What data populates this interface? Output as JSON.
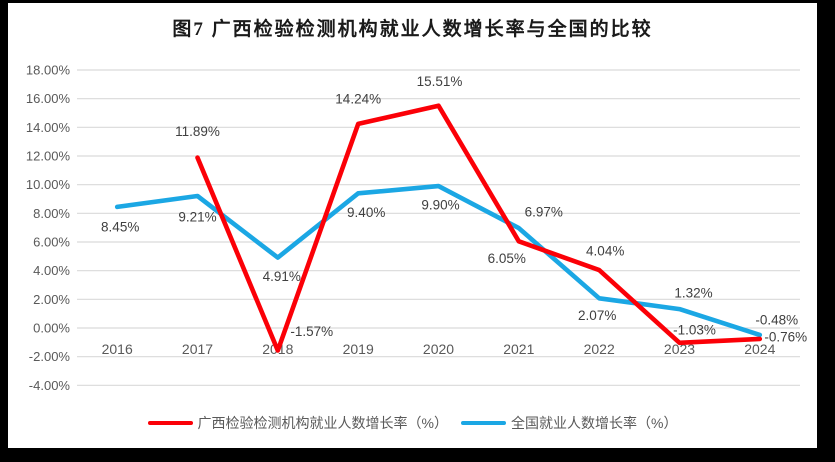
{
  "frame": {
    "surround_color": "#000000",
    "canvas_color": "#ffffff"
  },
  "chart_data": {
    "type": "line",
    "title": "图7 广西检验检测机构就业人数增长率与全国的比较",
    "categories": [
      "2016",
      "2017",
      "2018",
      "2019",
      "2020",
      "2021",
      "2022",
      "2023",
      "2024"
    ],
    "series": [
      {
        "name": "广西检验检测机构就业人数增长率（%）",
        "color": "#FB0007",
        "values": [
          null,
          11.89,
          -1.57,
          14.24,
          15.51,
          6.05,
          4.04,
          -1.03,
          -0.76
        ],
        "label_offsets": [
          [
            0,
            0
          ],
          [
            0,
            -26
          ],
          [
            34,
            -19
          ],
          [
            0,
            -25
          ],
          [
            1,
            -24
          ],
          [
            -12,
            17
          ],
          [
            6,
            -19
          ],
          [
            15,
            -13
          ],
          [
            26,
            -2
          ]
        ]
      },
      {
        "name": "全国就业人数增长率（%）",
        "color": "#1BA7E4",
        "values": [
          8.45,
          9.21,
          4.91,
          9.4,
          9.9,
          6.97,
          2.07,
          1.32,
          -0.48
        ],
        "label_offsets": [
          [
            3,
            20
          ],
          [
            0,
            21
          ],
          [
            4,
            19
          ],
          [
            8,
            19
          ],
          [
            2,
            19
          ],
          [
            25,
            -16
          ],
          [
            -2,
            17
          ],
          [
            14,
            -16
          ],
          [
            17,
            -15
          ]
        ]
      }
    ],
    "y_axis": {
      "min": -4,
      "max": 18,
      "step": 2
    },
    "y_tick_labels": [
      "18.00%",
      "16.00%",
      "14.00%",
      "12.00%",
      "10.00%",
      "8.00%",
      "6.00%",
      "4.00%",
      "2.00%",
      "0.00%",
      "-2.00%",
      "-4.00%"
    ],
    "grid": true,
    "gridline_color": "#D9D9D9",
    "tick_label_color": "#595959",
    "data_label_color": "#404040",
    "legend_position": "bottom"
  }
}
